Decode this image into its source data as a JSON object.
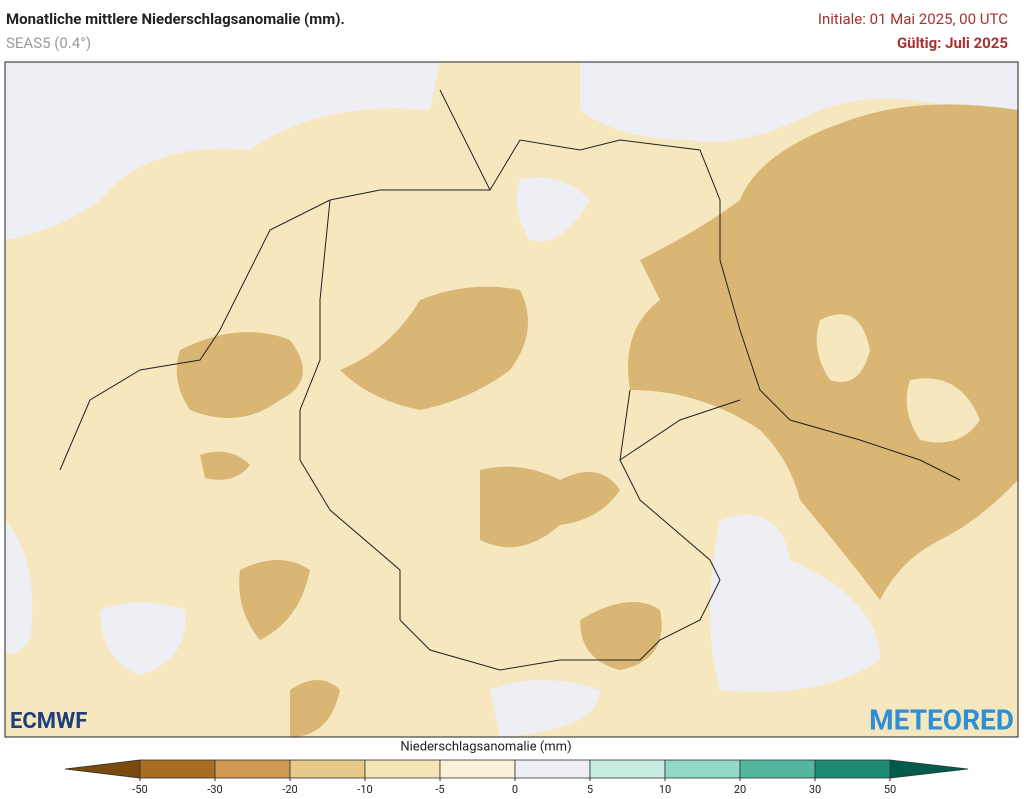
{
  "header": {
    "title": "Monatliche mittlere Niederschlagsanomalie (mm).",
    "subtitle": "SEAS5 (0.4°)",
    "initiale": "Initiale: 01 Mai 2025, 00 UTC",
    "valid": "Gültig: Juli 2025"
  },
  "logos": {
    "left": "ECMWF",
    "right": "METEORED"
  },
  "colorbar": {
    "label": "Niederschlagsanomalie (mm)",
    "ticks": [
      -50,
      -30,
      -20,
      -10,
      -5,
      0,
      5,
      10,
      20,
      30,
      50
    ],
    "colors": [
      "#7a4a0c",
      "#a86c22",
      "#cf9a50",
      "#e7c98a",
      "#f5e4b8",
      "#faf1d8",
      "#eeeef5",
      "#c9ece2",
      "#92d8c4",
      "#52b79c",
      "#1c8b72",
      "#005c4c"
    ]
  }
}
